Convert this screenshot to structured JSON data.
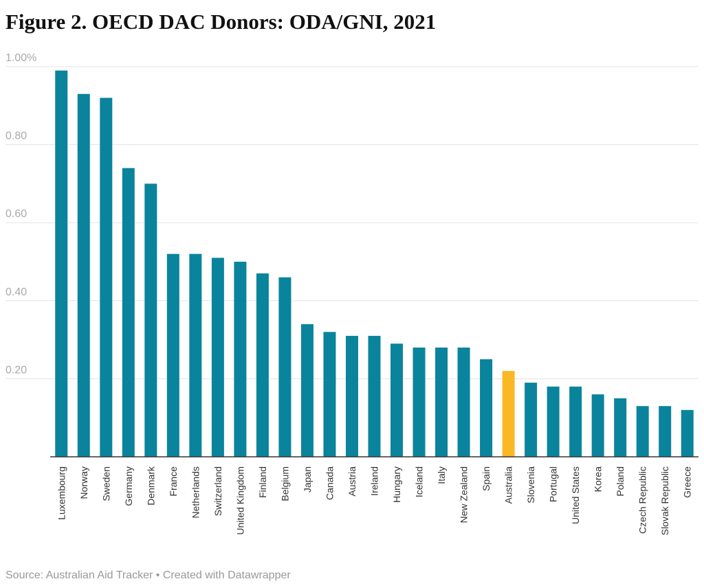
{
  "chart_data": {
    "type": "bar",
    "title": "Figure 2. OECD DAC Donors: ODA/GNI, 2021",
    "categories": [
      "Luxembourg",
      "Norway",
      "Sweden",
      "Germany",
      "Denmark",
      "France",
      "Netherlands",
      "Switzerland",
      "United Kingdom",
      "Finland",
      "Belgium",
      "Japan",
      "Canada",
      "Austria",
      "Ireland",
      "Hungary",
      "Iceland",
      "Italy",
      "New Zealand",
      "Spain",
      "Australia",
      "Slovenia",
      "Portugal",
      "United States",
      "Korea",
      "Poland",
      "Czech Republic",
      "Slovak Republic",
      "Greece"
    ],
    "values": [
      0.99,
      0.93,
      0.92,
      0.74,
      0.7,
      0.52,
      0.52,
      0.51,
      0.5,
      0.47,
      0.46,
      0.34,
      0.32,
      0.31,
      0.31,
      0.29,
      0.28,
      0.28,
      0.28,
      0.25,
      0.22,
      0.19,
      0.18,
      0.18,
      0.16,
      0.15,
      0.13,
      0.13,
      0.12
    ],
    "colors": [
      "#0a849c",
      "#0a849c",
      "#0a849c",
      "#0a849c",
      "#0a849c",
      "#0a849c",
      "#0a849c",
      "#0a849c",
      "#0a849c",
      "#0a849c",
      "#0a849c",
      "#0a849c",
      "#0a849c",
      "#0a849c",
      "#0a849c",
      "#0a849c",
      "#0a849c",
      "#0a849c",
      "#0a849c",
      "#0a849c",
      "#fbb825",
      "#0a849c",
      "#0a849c",
      "#0a849c",
      "#0a849c",
      "#0a849c",
      "#0a849c",
      "#0a849c",
      "#0a849c"
    ],
    "ylim": [
      0,
      1
    ],
    "yticks": [
      {
        "value": 0.2,
        "label": "0.20"
      },
      {
        "value": 0.4,
        "label": "0.40"
      },
      {
        "value": 0.6,
        "label": "0.60"
      },
      {
        "value": 0.8,
        "label": "0.80"
      },
      {
        "value": 1,
        "label": "1.00%"
      }
    ],
    "grid": true,
    "source": "Source: Australian Aid Tracker • Created with Datawrapper"
  }
}
